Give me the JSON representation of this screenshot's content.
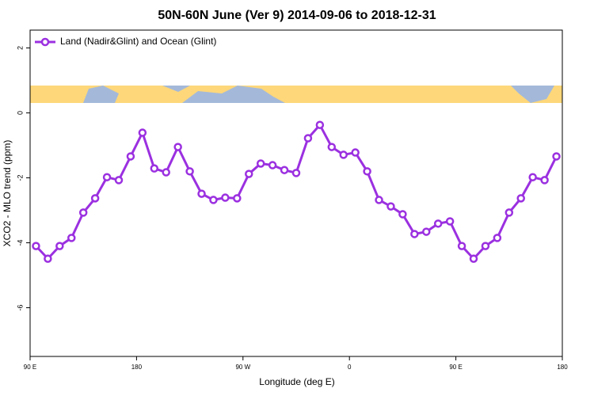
{
  "chart_data": {
    "type": "line",
    "title": "50N-60N June (Ver 9)   2014-09-06 to 2018-12-31",
    "x_label": "Longitude (deg E)",
    "y_label": "XCO2 - MLO trend (ppm)",
    "x": [
      95,
      105,
      115,
      125,
      135,
      145,
      155,
      165,
      175,
      185,
      195,
      205,
      215,
      225,
      235,
      245,
      255,
      265,
      275,
      285,
      295,
      305,
      315,
      325,
      335,
      345,
      355,
      365,
      375,
      385,
      395,
      405,
      415,
      425,
      435,
      445,
      455,
      465,
      475,
      485,
      495,
      505,
      515,
      525,
      535
    ],
    "series": [
      {
        "name": "Land (Nadir&Glint) and Ocean (Glint)",
        "color": "#9b30e0",
        "values": [
          -4.1,
          -4.49,
          -4.1,
          -3.85,
          -3.07,
          -2.63,
          -1.98,
          -2.07,
          -1.34,
          -0.61,
          -1.71,
          -1.83,
          -1.05,
          -1.8,
          -2.49,
          -2.68,
          -2.61,
          -2.63,
          -1.88,
          -1.56,
          -1.61,
          -1.76,
          -1.85,
          -0.78,
          -0.37,
          -1.05,
          -1.29,
          -1.22,
          -1.8,
          -2.68,
          -2.88,
          -3.12,
          -3.73,
          -3.66,
          -3.41,
          -3.34,
          -4.1,
          -4.49,
          -4.1,
          -3.85,
          -3.07,
          -2.63,
          -1.98,
          -2.07,
          -1.34
        ]
      }
    ],
    "xlim": [
      90,
      540
    ],
    "xticks": [
      {
        "value": 90,
        "label": "90 E"
      },
      {
        "value": 180,
        "label": "180"
      },
      {
        "value": 270,
        "label": "90 W"
      },
      {
        "value": 360,
        "label": "0"
      },
      {
        "value": 450,
        "label": "90 E"
      },
      {
        "value": 540,
        "label": "180"
      }
    ],
    "ylim": [
      -7.5,
      2.55
    ],
    "yticks": [
      -6,
      -4,
      -2,
      0,
      2
    ],
    "legend": "top-left"
  }
}
